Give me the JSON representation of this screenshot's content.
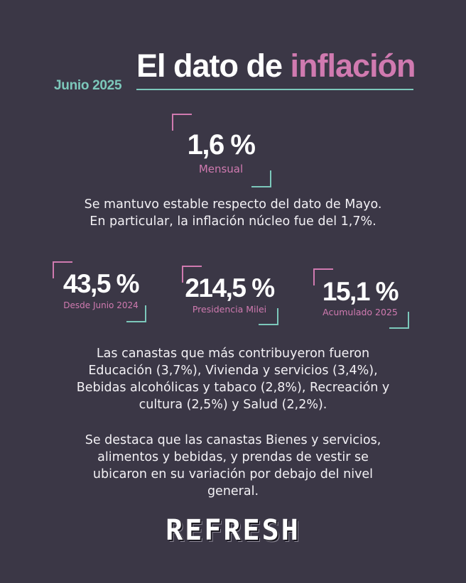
{
  "header": {
    "subtitle": "Junio 2025",
    "title_main": "El dato de ",
    "title_accent": "inflación"
  },
  "monthly": {
    "value": "1,6 %",
    "label": "Mensual"
  },
  "paragraph_1": [
    "Se mantuvo estable respecto del dato de Mayo.",
    "En particular, la inflación núcleo fue del 1,7%."
  ],
  "stats": [
    {
      "value": "43,5 %",
      "label": "Desde Junio 2024"
    },
    {
      "value": "214,5 %",
      "label": "Presidencia Milei"
    },
    {
      "value": "15,1 %",
      "label": "Acumulado 2025"
    }
  ],
  "paragraph_2": [
    "Las canastas que más contribuyeron fueron",
    "Educación (3,7%), Vivienda y servicios (3,4%),",
    "Bebidas alcohólicas y tabaco  (2,8%), Recreación y",
    "cultura (2,5%) y Salud (2,2%)."
  ],
  "paragraph_3": [
    "Se destaca que las canastas Bienes y servicios,",
    "alimentos y bebidas, y prendas de vestir se",
    "ubicaron en su variación por debajo del nivel",
    "general."
  ],
  "logo": "REFRESH",
  "colors": {
    "background": "#3b3746",
    "accent_pink": "#d07ab0",
    "accent_teal": "#7cc8bb",
    "text": "#ffffff"
  }
}
